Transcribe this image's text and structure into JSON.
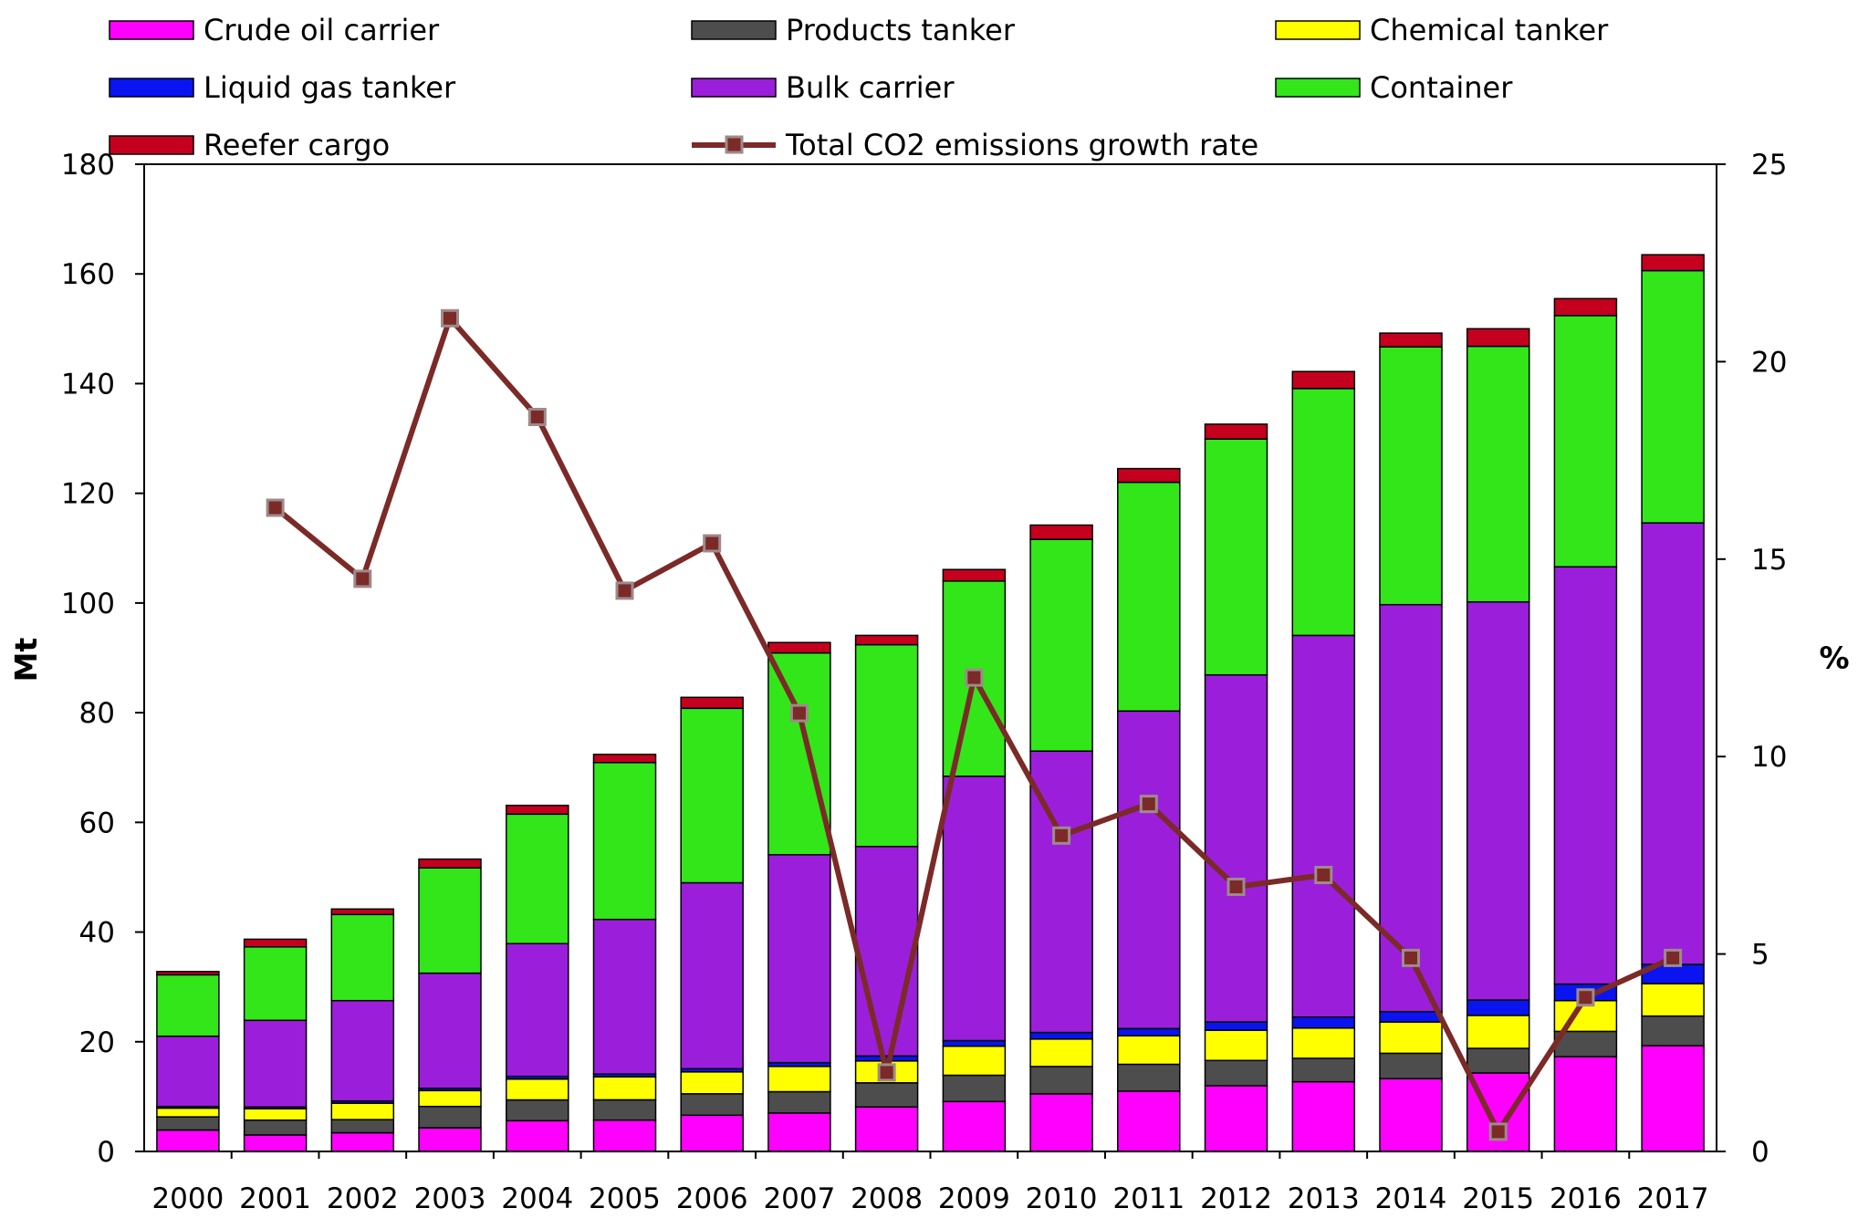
{
  "chart_data": {
    "type": "bar",
    "stacked": true,
    "categories": [
      "2000",
      "2001",
      "2002",
      "2003",
      "2004",
      "2005",
      "2006",
      "2007",
      "2008",
      "2009",
      "2010",
      "2011",
      "2012",
      "2013",
      "2014",
      "2015",
      "2016",
      "2017"
    ],
    "ylabel": "Mt",
    "y2label": "%",
    "ylim": [
      0,
      180
    ],
    "y_ticks": [
      0,
      20,
      40,
      60,
      80,
      100,
      120,
      140,
      160,
      180
    ],
    "y2lim": [
      0,
      25
    ],
    "y2_ticks": [
      0,
      5,
      10,
      15,
      20,
      25
    ],
    "legend_position": "top",
    "series": [
      {
        "name": "Crude oil carrier",
        "color": "#FF00FF",
        "values": [
          3.9,
          3.0,
          3.4,
          4.3,
          5.6,
          5.7,
          6.6,
          7.0,
          8.1,
          9.1,
          10.5,
          11.0,
          12.0,
          12.7,
          13.3,
          14.3,
          17.3,
          19.3
        ]
      },
      {
        "name": "Products tanker",
        "color": "#4D4D4D",
        "values": [
          2.4,
          2.7,
          2.4,
          3.9,
          3.8,
          3.7,
          3.9,
          3.9,
          4.4,
          4.8,
          5.0,
          4.9,
          4.6,
          4.3,
          4.6,
          4.5,
          4.6,
          5.4
        ]
      },
      {
        "name": "Chemical tanker",
        "color": "#FFFF00",
        "values": [
          1.6,
          2.1,
          3.0,
          2.9,
          3.8,
          4.2,
          4.0,
          4.6,
          4.0,
          5.3,
          5.0,
          5.2,
          5.5,
          5.5,
          5.7,
          6.0,
          5.6,
          5.9
        ]
      },
      {
        "name": "Liquid gas tanker",
        "color": "#0A14F0",
        "values": [
          0.3,
          0.3,
          0.4,
          0.4,
          0.5,
          0.5,
          0.6,
          0.7,
          0.9,
          1.0,
          1.2,
          1.3,
          1.5,
          2.0,
          1.9,
          2.8,
          3.0,
          3.5
        ]
      },
      {
        "name": "Bulk carrier",
        "color": "#9B1FDA",
        "values": [
          12.8,
          15.8,
          18.3,
          21.0,
          24.2,
          28.2,
          33.9,
          37.9,
          38.2,
          48.2,
          51.3,
          57.9,
          63.3,
          69.6,
          74.2,
          72.6,
          76.1,
          80.5
        ]
      },
      {
        "name": "Container",
        "color": "#32E61A",
        "values": [
          11.2,
          13.4,
          15.7,
          19.2,
          23.6,
          28.6,
          31.8,
          36.8,
          36.8,
          35.6,
          38.6,
          41.7,
          43.0,
          45.0,
          47.0,
          46.6,
          45.8,
          46.0
        ]
      },
      {
        "name": "Reefer cargo",
        "color": "#C4001E",
        "values": [
          0.6,
          1.4,
          1.0,
          1.6,
          1.6,
          1.5,
          2.0,
          1.9,
          1.7,
          2.1,
          2.6,
          2.5,
          2.7,
          3.1,
          2.5,
          3.2,
          3.1,
          2.9
        ]
      }
    ],
    "line_series": {
      "name": "Total CO2 emissions growth rate",
      "color": "#7B2A28",
      "marker_color": "#7B2A28",
      "marker_edge": "#9E8A8A",
      "axis": "right",
      "values": [
        null,
        16.3,
        14.5,
        21.1,
        18.6,
        14.2,
        15.4,
        11.1,
        2.0,
        12.0,
        8.0,
        8.8,
        6.7,
        7.0,
        4.9,
        0.5,
        3.9,
        4.9
      ]
    }
  }
}
